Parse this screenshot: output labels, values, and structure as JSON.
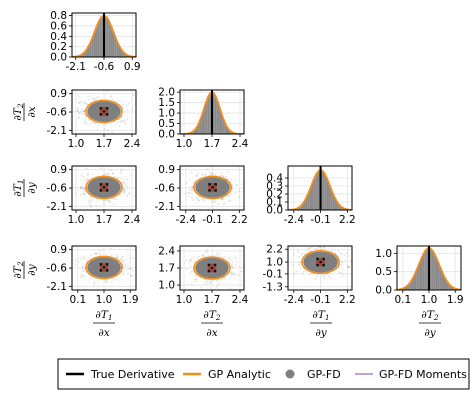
{
  "colors": {
    "true_derivative": "#000000",
    "gp_analytic": "#f28e1c",
    "gp_fd": "#7f7f7f",
    "gp_fd_moments": "#b07fd6",
    "hist_fill": "#8a8a8a",
    "grid": "#e3e3e3"
  },
  "legend": {
    "items": [
      {
        "label": "True Derivative",
        "marker": "line",
        "color": "#000000"
      },
      {
        "label": "GP Analytic",
        "marker": "line",
        "color": "#f28e1c"
      },
      {
        "label": "GP-FD",
        "marker": "dot",
        "color": "#7f7f7f"
      },
      {
        "label": "GP-FD Moments",
        "marker": "line",
        "color": "#b07fd6"
      }
    ]
  },
  "variables": [
    "∂T1/∂x",
    "∂T2/∂x",
    "∂T1/∂y",
    "∂T2/∂y"
  ],
  "chart_data": [
    {
      "type": "histogram",
      "row": 0,
      "col": 0,
      "xticks": [
        "-2.1",
        "-0.6",
        "0.9"
      ],
      "yticks": [
        "0.0",
        "0.2",
        "0.4",
        "0.6",
        "0.8"
      ],
      "xlim": [
        -2.3,
        1.1
      ],
      "ylim": [
        0,
        0.85
      ],
      "mean": -0.6,
      "sd": 0.5,
      "true_value": -0.6
    },
    {
      "type": "scatter",
      "row": 1,
      "col": 0,
      "xticks": [
        "1.0",
        "1.7",
        "2.4"
      ],
      "yticks": [
        "0.9",
        "-0.6",
        "-2.1"
      ],
      "xlim": [
        0.9,
        2.5
      ],
      "ylim": [
        -2.4,
        1.2
      ],
      "center": [
        1.7,
        -0.55
      ],
      "radius": [
        0.45,
        0.9
      ],
      "true_value": [
        1.7,
        -0.55
      ]
    },
    {
      "type": "histogram",
      "row": 1,
      "col": 1,
      "xticks": [
        "1.0",
        "1.7",
        "2.4"
      ],
      "yticks": [
        "0.0",
        "0.5",
        "1.0",
        "1.5",
        "2.0"
      ],
      "xlim": [
        0.9,
        2.5
      ],
      "ylim": [
        0,
        2.1
      ],
      "mean": 1.7,
      "sd": 0.2,
      "true_value": 1.7
    },
    {
      "type": "scatter",
      "row": 2,
      "col": 0,
      "xticks": [
        "1.0",
        "1.7",
        "2.4"
      ],
      "yticks": [
        "0.9",
        "-0.6",
        "-2.1"
      ],
      "xlim": [
        0.9,
        2.5
      ],
      "ylim": [
        -2.4,
        1.2
      ],
      "center": [
        1.7,
        -0.55
      ],
      "radius": [
        0.45,
        0.9
      ],
      "true_value": [
        1.7,
        -0.55
      ]
    },
    {
      "type": "scatter",
      "row": 2,
      "col": 1,
      "xticks": [
        "-2.4",
        "-0.1",
        "2.2"
      ],
      "yticks": [
        "0.9",
        "-0.6",
        "-2.1"
      ],
      "xlim": [
        -2.9,
        2.6
      ],
      "ylim": [
        -2.4,
        1.2
      ],
      "center": [
        -0.1,
        -0.55
      ],
      "radius": [
        1.6,
        0.9
      ],
      "true_value": [
        -0.1,
        -0.55
      ]
    },
    {
      "type": "histogram",
      "row": 2,
      "col": 2,
      "xticks": [
        "-2.4",
        "-0.1",
        "2.2"
      ],
      "yticks": [
        "0.0",
        "0.1",
        "0.2",
        "0.3",
        "0.4"
      ],
      "xlim": [
        -2.9,
        2.6
      ],
      "ylim": [
        0,
        0.55
      ],
      "mean": -0.1,
      "sd": 0.8,
      "true_value": -0.1
    },
    {
      "type": "scatter",
      "row": 3,
      "col": 0,
      "xticks": [
        "0.1",
        "1.0",
        "1.9"
      ],
      "yticks": [
        "0.9",
        "-0.6",
        "-2.1"
      ],
      "xlim": [
        -0.1,
        2.1
      ],
      "ylim": [
        -2.4,
        1.2
      ],
      "center": [
        1.0,
        -0.55
      ],
      "radius": [
        0.62,
        0.9
      ],
      "true_value": [
        1.0,
        -0.55
      ]
    },
    {
      "type": "scatter",
      "row": 3,
      "col": 1,
      "xticks": [
        "1.0",
        "1.7",
        "2.4"
      ],
      "yticks": [
        "2.4",
        "1.7",
        "1.0"
      ],
      "xlim": [
        0.9,
        2.5
      ],
      "ylim": [
        0.8,
        2.6
      ],
      "center": [
        1.7,
        1.7
      ],
      "radius": [
        0.45,
        0.45
      ],
      "true_value": [
        1.7,
        1.7
      ]
    },
    {
      "type": "scatter",
      "row": 3,
      "col": 2,
      "xticks": [
        "-2.4",
        "-0.1",
        "2.2"
      ],
      "yticks": [
        "2.2",
        "1.0",
        "-0.1",
        "-1.3"
      ],
      "xlim": [
        -2.9,
        2.6
      ],
      "ylim": [
        -1.6,
        2.5
      ],
      "center": [
        -0.1,
        1.0
      ],
      "radius": [
        1.6,
        1.05
      ],
      "true_value": [
        -0.1,
        1.0
      ]
    },
    {
      "type": "histogram",
      "row": 3,
      "col": 3,
      "xticks": [
        "0.1",
        "1.0",
        "1.9"
      ],
      "yticks": [
        "0.0",
        "0.5",
        "1.0"
      ],
      "xlim": [
        -0.1,
        2.1
      ],
      "ylim": [
        0,
        1.2
      ],
      "mean": 1.0,
      "sd": 0.35,
      "true_value": 1.0
    }
  ]
}
